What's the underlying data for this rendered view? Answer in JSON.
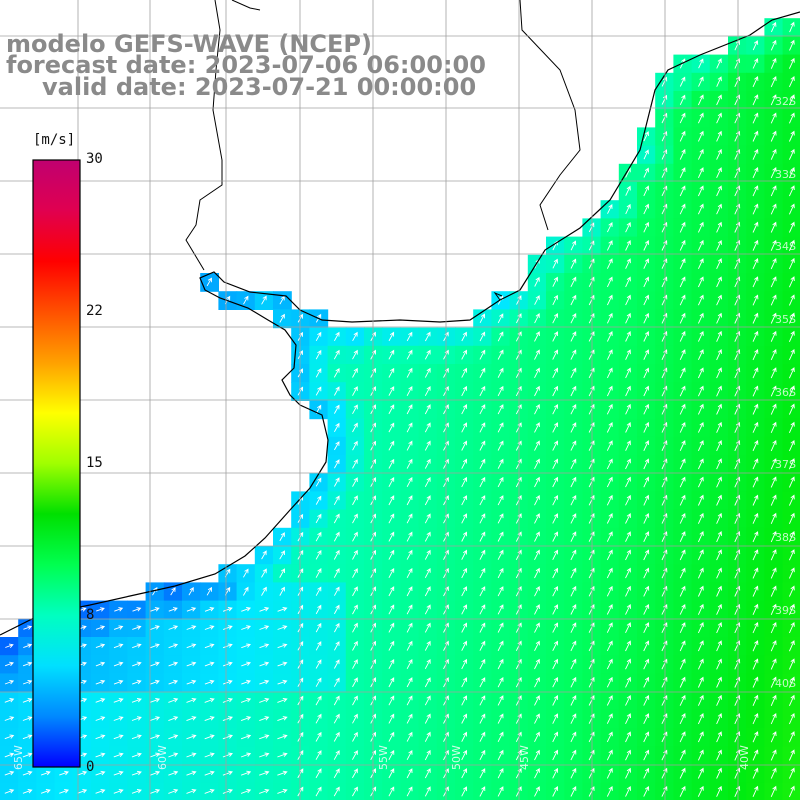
{
  "title": {
    "line1": "modelo GEFS-WAVE (NCEP)",
    "line2": "forecast date: 2023-07-06 06:00:00",
    "line3": "valid date: 2023-07-21 00:00:00"
  },
  "colorbar": {
    "unit": "[m/s]",
    "ticks": [
      "30",
      "22",
      "15",
      "8",
      "0"
    ],
    "colors": [
      "#0000ff",
      "#0088ff",
      "#00e0ff",
      "#00ffc0",
      "#00ff50",
      "#00e000",
      "#a0ff00",
      "#ffff00",
      "#ffa000",
      "#ff5000",
      "#ff0000",
      "#e00050",
      "#c00070"
    ]
  },
  "map_labels": {
    "lat": [
      "32S",
      "33S",
      "34S",
      "35S",
      "36S",
      "37S",
      "38S",
      "39S",
      "40S"
    ],
    "lon": [
      "65W",
      "60W",
      "55W",
      "50W",
      "45W",
      "40W"
    ]
  },
  "field": {
    "variable": "wind speed",
    "units": "m/s",
    "colors": {
      "land": "#ffffff",
      "coast": "#000000",
      "grid": "#a0a0a0",
      "arrows": "#ffffff"
    }
  }
}
